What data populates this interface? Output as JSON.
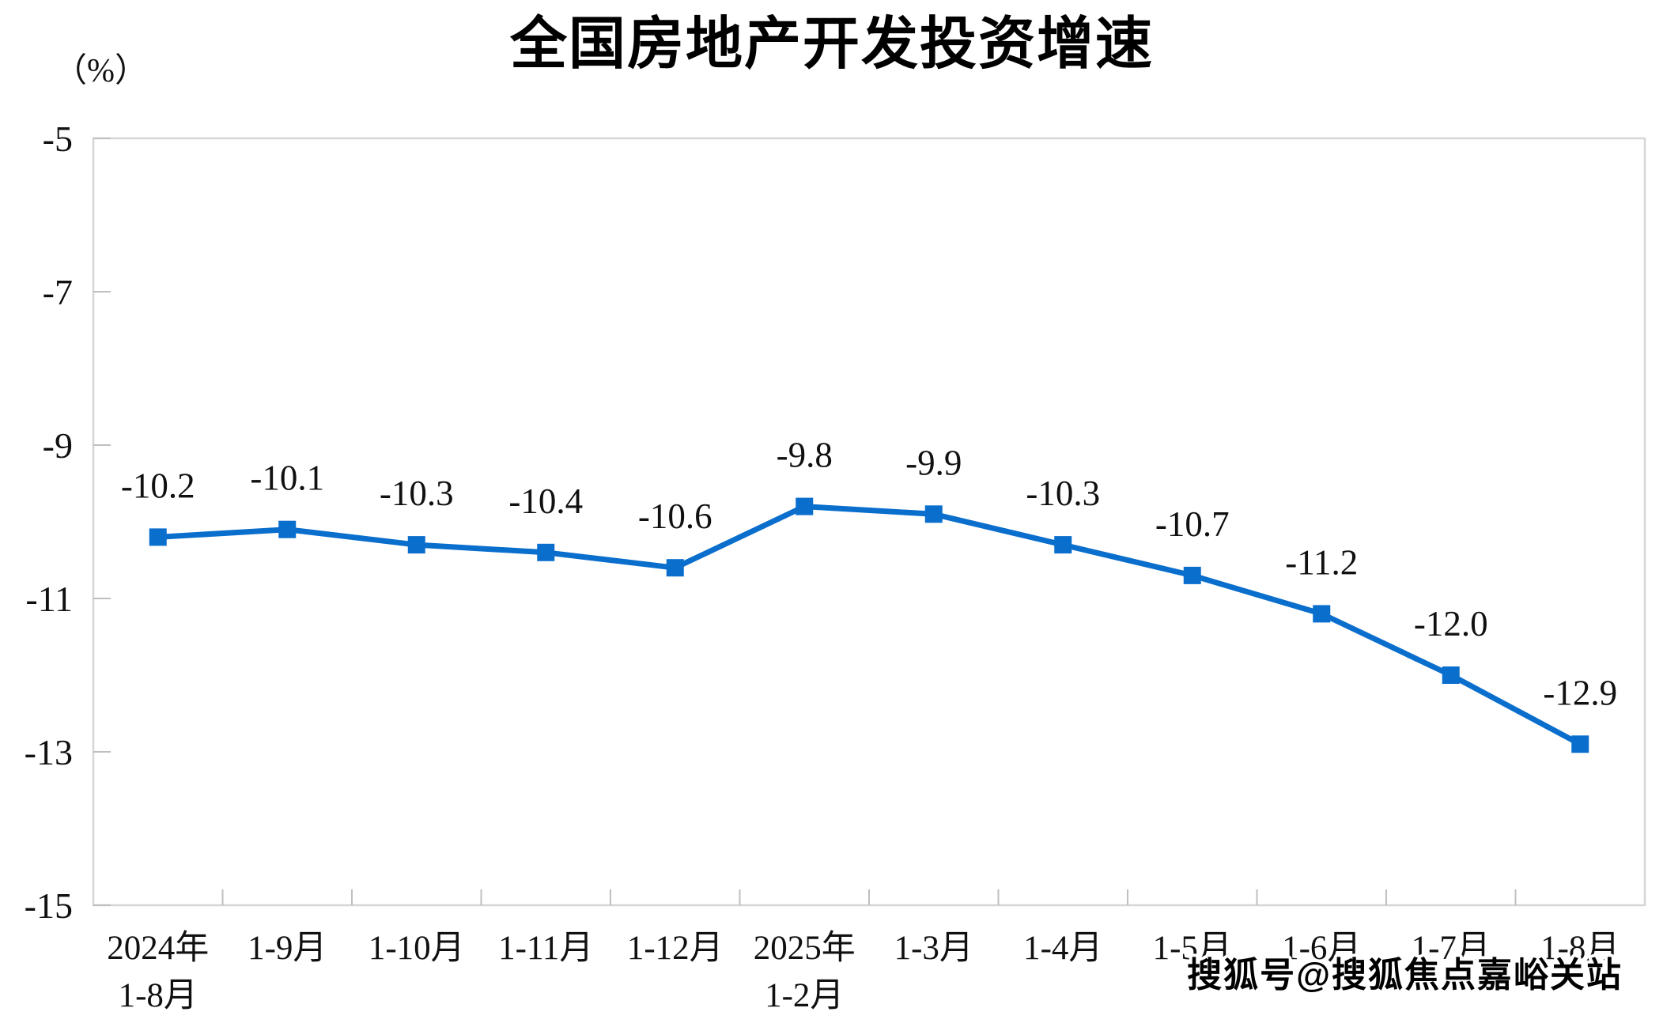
{
  "chart": {
    "title": "全国房地产开发投资增速",
    "unit_label": "（%）",
    "watermark": "搜狐号@搜狐焦点嘉峪关站",
    "colors": {
      "line": "#0a6ecd",
      "marker": "#0a6ecd",
      "plot_border": "#d6d6d6",
      "tick": "#bfbfbf",
      "title_text": "#000000",
      "axis_text": "#101010",
      "data_label_text": "#101010",
      "watermark_fill": "#000000",
      "watermark_stroke": "#ffffff",
      "background": "#ffffff"
    }
  },
  "chart_data": {
    "type": "line",
    "title": "全国房地产开发投资增速",
    "ylabel": "（%）",
    "legend_position": "none",
    "grid": false,
    "marker": "square",
    "categories": [
      "2024年 1-8月",
      "1-9月",
      "1-10月",
      "1-11月",
      "1-12月",
      "2025年 1-2月",
      "1-3月",
      "1-4月",
      "1-5月",
      "1-6月",
      "1-7月",
      "1-8月"
    ],
    "category_lines": [
      [
        "2024年",
        "1-8月"
      ],
      [
        "1-9月"
      ],
      [
        "1-10月"
      ],
      [
        "1-11月"
      ],
      [
        "1-12月"
      ],
      [
        "2025年",
        "1-2月"
      ],
      [
        "1-3月"
      ],
      [
        "1-4月"
      ],
      [
        "1-5月"
      ],
      [
        "1-6月"
      ],
      [
        "1-7月"
      ],
      [
        "1-8月"
      ]
    ],
    "series": [
      {
        "name": "全国房地产开发投资增速",
        "values": [
          -10.2,
          -10.1,
          -10.3,
          -10.4,
          -10.6,
          -9.8,
          -9.9,
          -10.3,
          -10.7,
          -11.2,
          -12.0,
          -12.9
        ]
      }
    ],
    "data_labels": [
      "-10.2",
      "-10.1",
      "-10.3",
      "-10.4",
      "-10.6",
      "-9.8",
      "-9.9",
      "-10.3",
      "-10.7",
      "-11.2",
      "-12.0",
      "-12.9"
    ],
    "ytick_labels": [
      "-5",
      "-7",
      "-9",
      "-11",
      "-13",
      "-15"
    ],
    "ytick_values": [
      -5,
      -7,
      -9,
      -11,
      -13,
      -15
    ],
    "ylim": [
      -15,
      -5
    ]
  }
}
